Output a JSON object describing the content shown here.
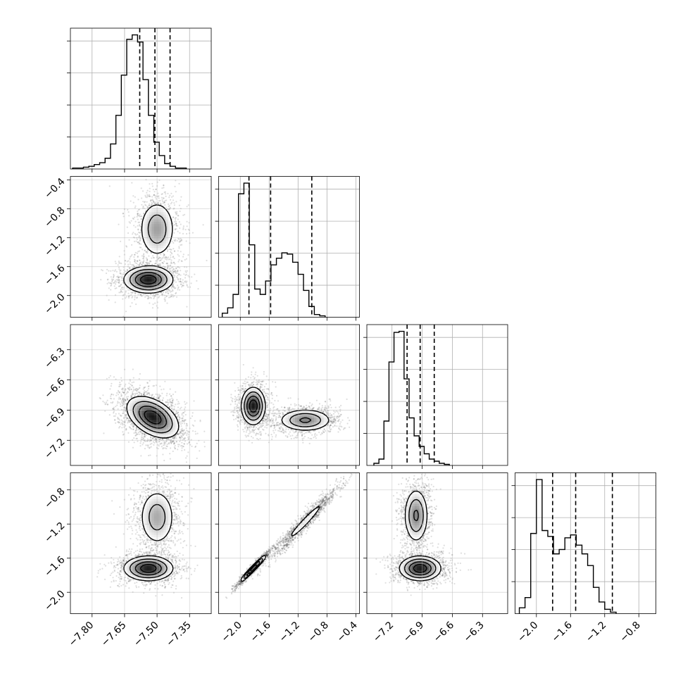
{
  "chart_data": {
    "type": "corner",
    "parameters": [
      {
        "range": [
          -7.9,
          -7.25
        ],
        "ticks": [
          -7.8,
          -7.65,
          -7.5,
          -7.35
        ],
        "tick_labels": [
          "−7.80",
          "−7.65",
          "−7.50",
          "−7.35"
        ],
        "hist": {
          "start": -7.89,
          "bin": 0.025,
          "counts": [
            1,
            1,
            2,
            3,
            5,
            7,
            12,
            28,
            60,
            105,
            145,
            150,
            142,
            100,
            60,
            30,
            15,
            6,
            3,
            1,
            1
          ],
          "quantiles": [
            -7.58,
            -7.51,
            -7.44
          ]
        }
      },
      {
        "range": [
          -2.3,
          -0.35
        ],
        "ticks": [
          -2.0,
          -1.6,
          -1.2,
          -0.8,
          -0.4
        ],
        "tick_labels": [
          "−2.0",
          "−1.6",
          "−1.2",
          "−0.8",
          "−0.4"
        ],
        "hist": {
          "start": -2.25,
          "bin": 0.075,
          "counts": [
            3,
            7,
            17,
            92,
            100,
            54,
            21,
            17,
            27,
            39,
            44,
            48,
            47,
            41,
            32,
            20,
            8,
            2,
            1
          ],
          "quantiles": [
            -1.88,
            -1.58,
            -1.01
          ]
        }
      },
      {
        "range": [
          -7.45,
          -6.05
        ],
        "ticks": [
          -7.2,
          -6.9,
          -6.6,
          -6.3
        ],
        "tick_labels": [
          "−7.2",
          "−6.9",
          "−6.6",
          "−6.3"
        ],
        "hist": {
          "start": -7.38,
          "bin": 0.05,
          "counts": [
            2,
            6,
            42,
            98,
            126,
            127,
            82,
            45,
            28,
            18,
            11,
            6,
            4,
            2,
            1
          ],
          "quantiles": [
            -7.05,
            -6.92,
            -6.78
          ]
        }
      },
      {
        "range": [
          -2.25,
          -0.6
        ],
        "ticks": [
          -2.0,
          -1.6,
          -1.2,
          -0.8
        ],
        "tick_labels": [
          "−2.0",
          "−1.6",
          "−1.2",
          "−0.8"
        ],
        "hist": {
          "start": -2.2,
          "bin": 0.0667,
          "counts": [
            4,
            11,
            55,
            92,
            57,
            53,
            41,
            44,
            52,
            54,
            47,
            41,
            33,
            18,
            8,
            3,
            1
          ],
          "quantiles": [
            -1.81,
            -1.54,
            -1.11
          ]
        }
      }
    ],
    "panels_2d": [
      {
        "row": 1,
        "col": 0,
        "modes": [
          {
            "mx": -7.5,
            "my": -1.08,
            "sx": 0.042,
            "sy": 0.2,
            "rho": 0.0,
            "w": 0.45
          },
          {
            "mx": -7.54,
            "my": -1.78,
            "sx": 0.055,
            "sy": 0.09,
            "rho": 0.0,
            "w": 0.55
          }
        ]
      },
      {
        "row": 2,
        "col": 0,
        "modes": [
          {
            "mx": -7.52,
            "my": -6.97,
            "sx": 0.058,
            "sy": 0.1,
            "rho": -0.45,
            "w": 1.0
          }
        ]
      },
      {
        "row": 2,
        "col": 1,
        "modes": [
          {
            "mx": -1.82,
            "my": -6.86,
            "sx": 0.08,
            "sy": 0.09,
            "rho": 0.0,
            "w": 0.55
          },
          {
            "mx": -1.1,
            "my": -7.0,
            "sx": 0.18,
            "sy": 0.055,
            "rho": 0.0,
            "w": 0.45
          }
        ]
      },
      {
        "row": 3,
        "col": 0,
        "modes": [
          {
            "mx": -7.5,
            "my": -1.12,
            "sx": 0.042,
            "sy": 0.17,
            "rho": 0.0,
            "w": 0.45
          },
          {
            "mx": -7.54,
            "my": -1.72,
            "sx": 0.055,
            "sy": 0.07,
            "rho": 0.0,
            "w": 0.55
          }
        ]
      },
      {
        "row": 3,
        "col": 1,
        "modes": [
          {
            "mx": -1.82,
            "my": -1.72,
            "sx": 0.085,
            "sy": 0.075,
            "rho": 0.97,
            "w": 0.55
          },
          {
            "mx": -1.1,
            "my": -1.17,
            "sx": 0.18,
            "sy": 0.16,
            "rho": 0.97,
            "w": 0.45
          }
        ]
      },
      {
        "row": 3,
        "col": 2,
        "modes": [
          {
            "mx": -6.96,
            "my": -1.1,
            "sx": 0.06,
            "sy": 0.16,
            "rho": 0.0,
            "w": 0.45
          },
          {
            "mx": -6.92,
            "my": -1.72,
            "sx": 0.1,
            "sy": 0.07,
            "rho": 0.0,
            "w": 0.55
          }
        ]
      }
    ]
  }
}
